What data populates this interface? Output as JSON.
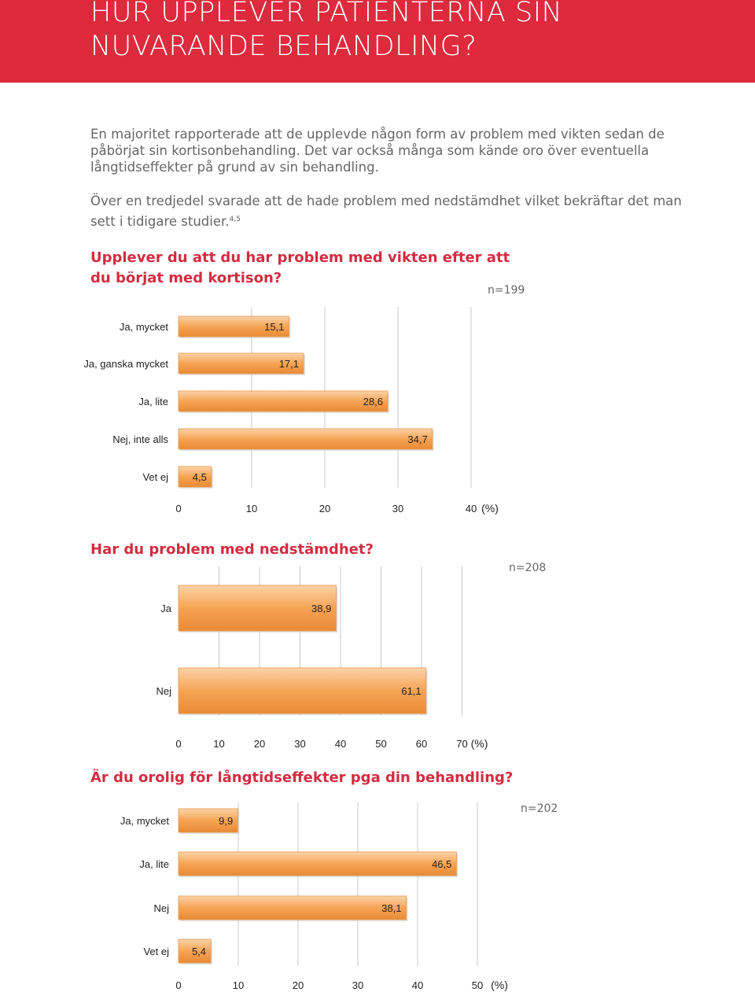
{
  "header": {
    "title": "HUR UPPLEVER PATIENTERNA SIN\nNUVARANDE BEHANDLING?",
    "bg_color": "#dd2a3d"
  },
  "intro": {
    "paragraph1": "En majoritet rapporterade att de upplevde någon form av problem med vikten sedan de påbörjat sin kortisonbehandling. Det var också många som kände oro över eventuella långtidseffekter på grund av sin behandling.",
    "paragraph2": "Över en tredjedel svarade att de hade problem med nedstämdhet vilket bekräftar det man sett i tidigare studier.",
    "paragraph2_ref": "4,5"
  },
  "accent_color": "#d32c40",
  "bar_color": "#f6a455",
  "chart_data": [
    {
      "type": "bar",
      "orientation": "horizontal",
      "title": "Upplever du att du har problem med vikten efter att\ndu börjat med kortison?",
      "n_label": "n=199",
      "categories": [
        "Ja, mycket",
        "Ja, ganska mycket",
        "Ja, lite",
        "Nej, inte alls",
        "Vet ej"
      ],
      "values": [
        15.1,
        17.1,
        28.6,
        34.7,
        4.5
      ],
      "value_labels": [
        "15,1",
        "17,1",
        "28,6",
        "34,7",
        "4,5"
      ],
      "xticks": [
        0,
        10,
        20,
        30,
        40
      ],
      "xtick_labels": [
        "0",
        "10",
        "20",
        "30",
        "40"
      ],
      "xunit": "(%)",
      "xlim": [
        0,
        40
      ],
      "grid": true
    },
    {
      "type": "bar",
      "orientation": "horizontal",
      "title": "Har du problem med nedstämdhet?",
      "n_label": "n=208",
      "categories": [
        "Ja",
        "Nej"
      ],
      "values": [
        38.9,
        61.1
      ],
      "value_labels": [
        "38,9",
        "61,1"
      ],
      "xticks": [
        0,
        10,
        20,
        30,
        40,
        50,
        60,
        70
      ],
      "xtick_labels": [
        "0",
        "10",
        "20",
        "30",
        "40",
        "50",
        "60",
        "70"
      ],
      "xunit": "(%)",
      "xlim": [
        0,
        70
      ],
      "grid": true
    },
    {
      "type": "bar",
      "orientation": "horizontal",
      "title": "Är du orolig för långtidseffekter pga din behandling?",
      "n_label": "n=202",
      "categories": [
        "Ja, mycket",
        "Ja, lite",
        "Nej",
        "Vet ej"
      ],
      "values": [
        9.9,
        46.5,
        38.1,
        5.4
      ],
      "value_labels": [
        "9,9",
        "46,5",
        "38,1",
        "5,4"
      ],
      "xticks": [
        0,
        10,
        20,
        30,
        40,
        50
      ],
      "xtick_labels": [
        "0",
        "10",
        "20",
        "30",
        "40",
        "50"
      ],
      "xunit": "(%)",
      "xlim": [
        0,
        50
      ],
      "grid": true
    }
  ]
}
